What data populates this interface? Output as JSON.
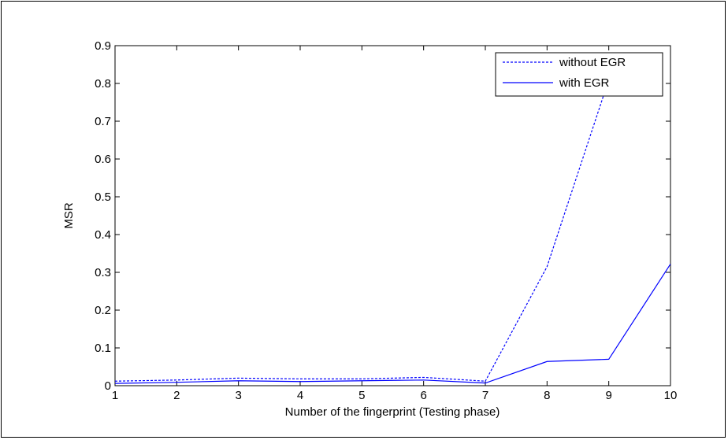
{
  "chart_data": {
    "type": "line",
    "xlabel": "Number of  the fingerprint (Testing phase)",
    "ylabel": "MSR",
    "xlim": [
      1,
      10
    ],
    "ylim": [
      0,
      0.9
    ],
    "xticks": [
      1,
      2,
      3,
      4,
      5,
      6,
      7,
      8,
      9,
      10
    ],
    "yticks": [
      0,
      0.1,
      0.2,
      0.3,
      0.4,
      0.5,
      0.6,
      0.7,
      0.8,
      0.9
    ],
    "grid": false,
    "legend_position": "top-right",
    "series": [
      {
        "name": "without EGR",
        "style": "dashed",
        "color": "#0000ff",
        "x": [
          1,
          2,
          3,
          4,
          5,
          6,
          7,
          8,
          9,
          10
        ],
        "y": [
          0.012,
          0.015,
          0.02,
          0.018,
          0.018,
          0.022,
          0.012,
          0.315,
          0.81,
          null
        ]
      },
      {
        "name": "with EGR",
        "style": "solid",
        "color": "#0000ff",
        "x": [
          1,
          2,
          3,
          4,
          5,
          6,
          7,
          8,
          9,
          10
        ],
        "y": [
          0.006,
          0.009,
          0.013,
          0.011,
          0.013,
          0.015,
          0.007,
          0.064,
          0.07,
          0.322
        ]
      }
    ]
  }
}
